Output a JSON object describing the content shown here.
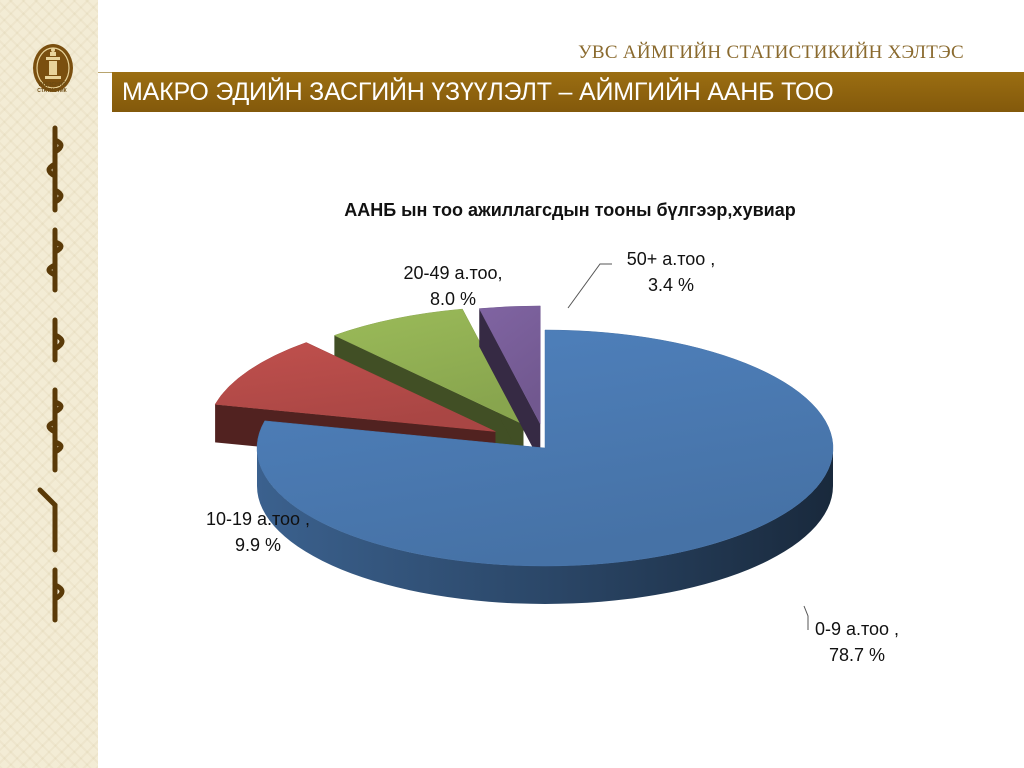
{
  "header": {
    "brand": "УВС АЙМГИЙН СТАТИСТИКИЙН ХЭЛТЭС",
    "title": "МАКРО ЭДИЙН ЗАСГИЙН ҮЗҮҮЛЭЛТ – АЙМГИЙН  ААНБ ТОО"
  },
  "sidebar": {
    "logo_text_1": "ҮНДЭСНИЙ",
    "logo_text_2": "СТАТИСТИК"
  },
  "colors": {
    "title_bar": "#8f640f",
    "slice_0_9": "#4f81bd",
    "slice_10_19": "#c0504d",
    "slice_20_49": "#9bbb59",
    "slice_50_plus": "#8064a2"
  },
  "chart_data": {
    "type": "pie",
    "title": "ААНБ ын тоо  ажиллагсдын тооны бүлгээр,хувиар",
    "series": [
      {
        "name": "0-9 а.тоо",
        "value": 78.7,
        "label_line1": "0-9 а.тоо ,",
        "label_line2": "78.7 %",
        "color": "#4f81bd"
      },
      {
        "name": "10-19 а.тоо",
        "value": 9.9,
        "label_line1": "10-19 а.тоо ,",
        "label_line2": "9.9 %",
        "color": "#c0504d"
      },
      {
        "name": "20-49 а.тоо",
        "value": 8.0,
        "label_line1": "20-49 а.тоо,",
        "label_line2": "8.0 %",
        "color": "#9bbb59"
      },
      {
        "name": "50+ а.тоо",
        "value": 3.4,
        "label_line1": "50+ а.тоо ,",
        "label_line2": "3.4 %",
        "color": "#8064a2"
      }
    ],
    "style": "3d-exploded"
  }
}
